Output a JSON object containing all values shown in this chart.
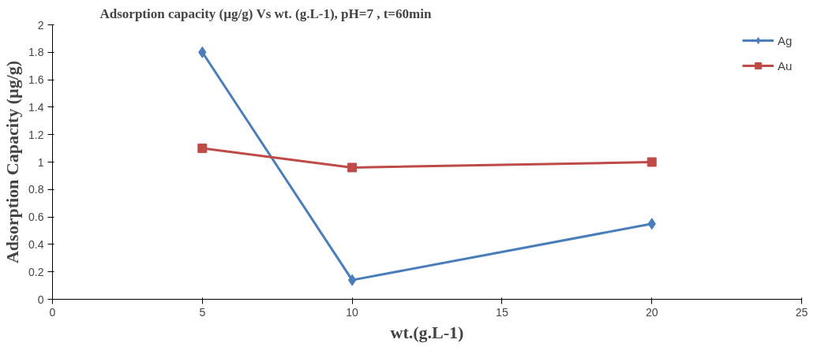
{
  "chart_data": {
    "type": "line",
    "title": "Adsorption capacity (µg/g)  Vs wt. (g.L-1), pH=7 , t=60min",
    "xlabel": "wt.(g.L-1)",
    "ylabel": "Adsorption Capacity (µg/g)",
    "series": [
      {
        "name": "Ag",
        "color": "#4a7ebb",
        "marker": "diamond",
        "x": [
          5,
          10,
          20
        ],
        "values": [
          1.8,
          0.14,
          0.55
        ]
      },
      {
        "name": "Au",
        "color": "#be4b48",
        "marker": "square",
        "x": [
          5,
          10,
          20
        ],
        "values": [
          1.1,
          0.96,
          1.0
        ]
      }
    ],
    "xlim": [
      0,
      25
    ],
    "xticks": [
      0,
      5,
      10,
      15,
      20,
      25
    ],
    "ylim": [
      0,
      2
    ],
    "yticks": [
      0,
      0.2,
      0.4,
      0.6,
      0.8,
      1,
      1.2,
      1.4,
      1.6,
      1.8,
      2
    ],
    "grid": false,
    "legend": "top right"
  }
}
